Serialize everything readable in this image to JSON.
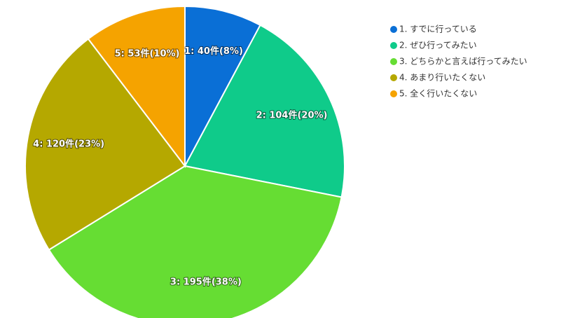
{
  "chart_data": {
    "type": "pie",
    "categories": [
      "1. すでに行っている",
      "2. ぜひ行ってみたい",
      "3. どちらかと言えば行ってみたい",
      "4. あまり行いたくない",
      "5. 全く行いたくない"
    ],
    "values": [
      40,
      104,
      195,
      120,
      53
    ],
    "value_labels": [
      "1: 40件(8%)",
      "2: 104件(20%)",
      "3: 195件(38%)",
      "4: 120件(23%)",
      "5: 53件(10%)"
    ],
    "colors": [
      "#0a6fd6",
      "#0fcb8a",
      "#66dd33",
      "#b5a800",
      "#f5a300"
    ],
    "legend": "right"
  }
}
